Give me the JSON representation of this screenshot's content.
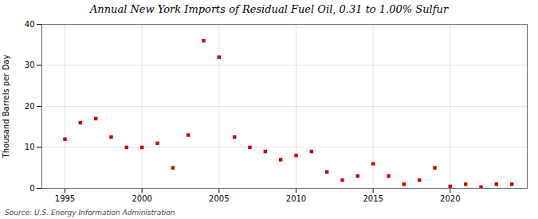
{
  "chart_data": {
    "type": "scatter",
    "title": "Annual New York Imports of Residual Fuel Oil, 0.31 to 1.00% Sulfur",
    "ylabel": "Thousand Barrels per Day",
    "source": "Source: U.S. Energy Information Administration",
    "color": "#cc0000",
    "marker": "square",
    "grid": true,
    "xlim": [
      1993.5,
      2025
    ],
    "ylim": [
      0,
      40
    ],
    "xticks": [
      1995,
      2000,
      2005,
      2010,
      2015,
      2020
    ],
    "yticks": [
      0,
      10,
      20,
      30,
      40
    ],
    "x": [
      1995,
      1996,
      1997,
      1998,
      1999,
      2000,
      2001,
      2002,
      2003,
      2004,
      2005,
      2006,
      2007,
      2008,
      2009,
      2010,
      2011,
      2012,
      2013,
      2014,
      2015,
      2016,
      2017,
      2018,
      2019,
      2020,
      2021,
      2022,
      2023,
      2024
    ],
    "values": [
      12,
      16,
      17,
      12.5,
      10,
      10,
      11,
      5,
      13,
      36,
      32,
      12.5,
      10,
      9,
      7,
      8,
      9,
      4,
      2,
      3,
      6,
      3,
      1,
      2,
      5,
      0.5,
      1,
      0.3,
      1,
      1
    ]
  }
}
